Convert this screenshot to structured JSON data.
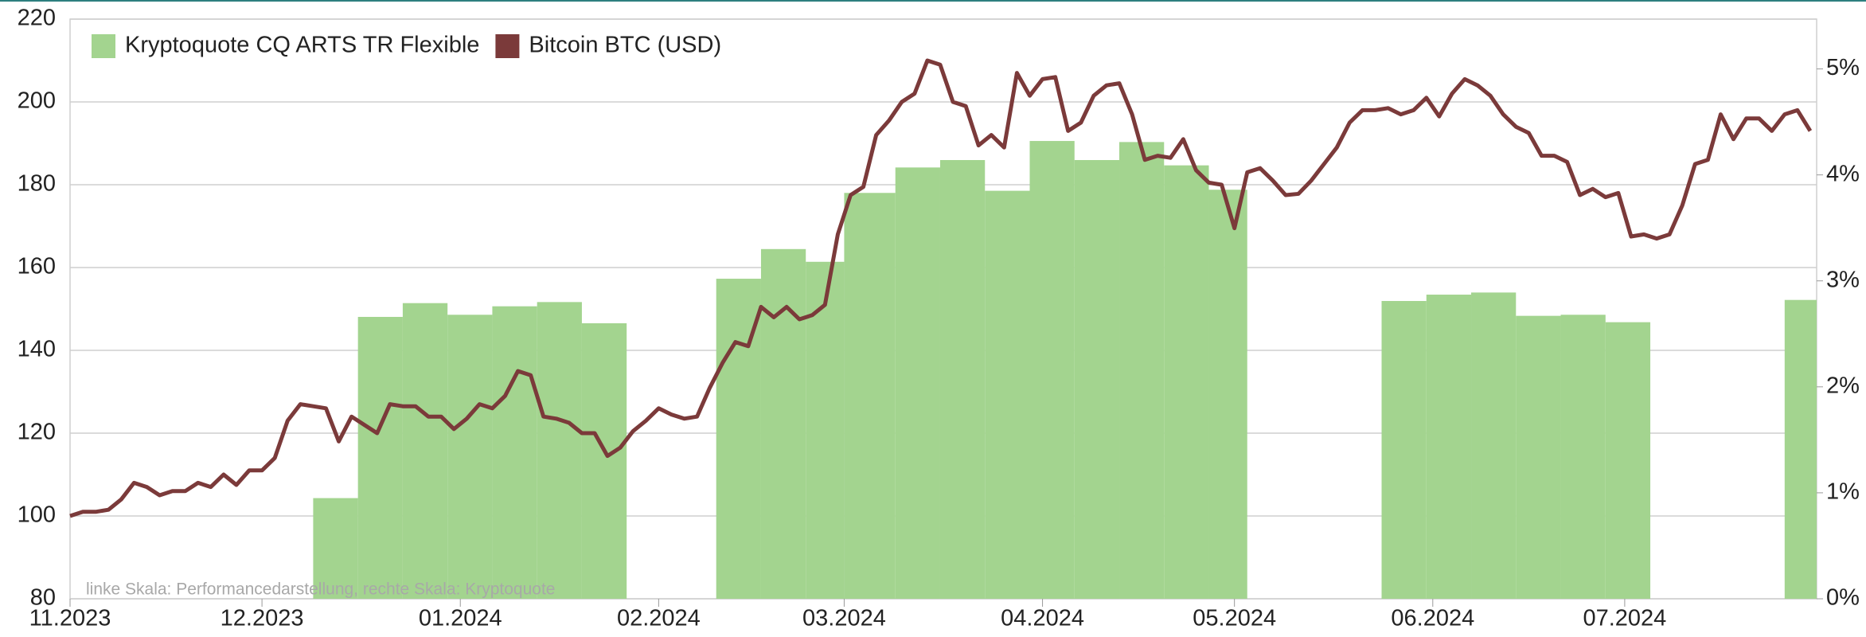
{
  "chart_data": {
    "type": "combo",
    "annotation": "linke Skala: Performancedarstellung, rechte Skala: Kryptoquote",
    "xlim": [
      0,
      273
    ],
    "xticks": [
      {
        "value": 0,
        "label": "11.2023"
      },
      {
        "value": 30,
        "label": "12.2023"
      },
      {
        "value": 61,
        "label": "01.2024"
      },
      {
        "value": 92,
        "label": "02.2024"
      },
      {
        "value": 121,
        "label": "03.2024"
      },
      {
        "value": 152,
        "label": "04.2024"
      },
      {
        "value": 182,
        "label": "05.2024"
      },
      {
        "value": 213,
        "label": "06.2024"
      },
      {
        "value": 243,
        "label": "07.2024"
      }
    ],
    "ylim": [
      80,
      220
    ],
    "yticks": [
      80,
      100,
      120,
      140,
      160,
      180,
      200,
      220
    ],
    "y2lim": [
      0,
      5.47
    ],
    "y2ticks": [
      {
        "value": 0,
        "label": "0%"
      },
      {
        "value": 1,
        "label": "1%"
      },
      {
        "value": 2,
        "label": "2%"
      },
      {
        "value": 3,
        "label": "3%"
      },
      {
        "value": 4,
        "label": "4%"
      },
      {
        "value": 5,
        "label": "5%"
      }
    ],
    "grid": true,
    "legend": "top-left",
    "series": [
      {
        "name": "Kryptoquote CQ ARTS TR Flexible",
        "type": "bar",
        "axis": "y2",
        "color": "#a3d48f",
        "x_start": [
          38,
          45,
          52,
          59,
          66,
          73,
          80,
          101,
          108,
          115,
          121,
          129,
          136,
          143,
          150,
          157,
          164,
          171,
          178,
          205,
          212,
          219,
          226,
          233,
          240,
          268
        ],
        "x_end": [
          45,
          52,
          59,
          66,
          73,
          80,
          87,
          108,
          115,
          121,
          129,
          136,
          143,
          150,
          157,
          164,
          171,
          178,
          184,
          212,
          219,
          226,
          233,
          240,
          247,
          273
        ],
        "values": [
          0.95,
          2.66,
          2.79,
          2.68,
          2.76,
          2.8,
          2.6,
          3.02,
          3.3,
          3.18,
          3.83,
          4.07,
          4.14,
          3.85,
          4.32,
          4.14,
          4.31,
          4.09,
          3.86,
          2.81,
          2.87,
          2.89,
          2.67,
          2.68,
          2.61,
          2.82
        ]
      },
      {
        "name": "Bitcoin BTC (USD)",
        "type": "line",
        "color": "#7b3a3a",
        "x": [
          0,
          2,
          4,
          6,
          8,
          10,
          12,
          14,
          16,
          18,
          20,
          22,
          24,
          26,
          28,
          30,
          32,
          34,
          36,
          38,
          40,
          42,
          44,
          46,
          48,
          50,
          52,
          54,
          56,
          58,
          60,
          62,
          64,
          66,
          68,
          70,
          72,
          74,
          76,
          78,
          80,
          82,
          84,
          86,
          88,
          90,
          92,
          94,
          96,
          98,
          100,
          102,
          104,
          106,
          108,
          110,
          112,
          114,
          116,
          118,
          120,
          122,
          124,
          126,
          128,
          130,
          132,
          134,
          136,
          138,
          140,
          142,
          144,
          146,
          148,
          150,
          152,
          154,
          156,
          158,
          160,
          162,
          164,
          166,
          168,
          170,
          172,
          174,
          176,
          178,
          180,
          182,
          184,
          186,
          188,
          190,
          192,
          194,
          196,
          198,
          200,
          202,
          204,
          206,
          208,
          210,
          212,
          214,
          216,
          218,
          220,
          222,
          224,
          226,
          228,
          230,
          232,
          234,
          236,
          238,
          240,
          242,
          244,
          246,
          248,
          250,
          252,
          254,
          256,
          258,
          260,
          262,
          264,
          266,
          268,
          270,
          272
        ],
        "values": [
          100,
          101,
          101,
          101.5,
          104,
          108,
          107,
          105,
          106,
          106,
          108,
          107,
          110,
          107.5,
          111,
          111,
          114,
          123,
          127,
          126.5,
          126,
          118,
          124,
          122,
          120,
          127,
          126.5,
          126.5,
          124,
          124,
          121,
          123.5,
          127,
          126,
          129,
          135,
          134,
          124,
          123.5,
          122.5,
          120,
          120,
          114.5,
          116.5,
          120.5,
          123,
          126,
          124.5,
          123.5,
          124,
          131,
          137,
          142,
          141,
          150.5,
          148,
          150.5,
          147.5,
          148.5,
          151,
          168,
          177.5,
          179.5,
          192,
          195.5,
          200,
          202,
          210,
          209,
          200,
          199,
          189.5,
          192,
          189,
          207,
          201.5,
          205.5,
          206,
          193,
          195,
          201.5,
          204,
          204.5,
          197,
          186,
          187,
          186.5,
          191,
          183.5,
          180.5,
          180,
          169.5,
          183,
          184,
          181,
          177.5,
          177.8,
          181,
          185,
          189,
          195,
          198,
          198,
          198.5,
          197,
          198,
          201,
          196.5,
          202,
          205.5,
          204,
          201.5,
          197,
          194,
          192.5,
          187,
          187,
          185.5,
          177.5,
          179,
          177,
          178,
          167.5,
          168,
          167,
          168,
          175,
          185,
          186,
          197,
          191,
          196,
          196,
          193,
          197,
          198,
          193
        ]
      }
    ]
  }
}
